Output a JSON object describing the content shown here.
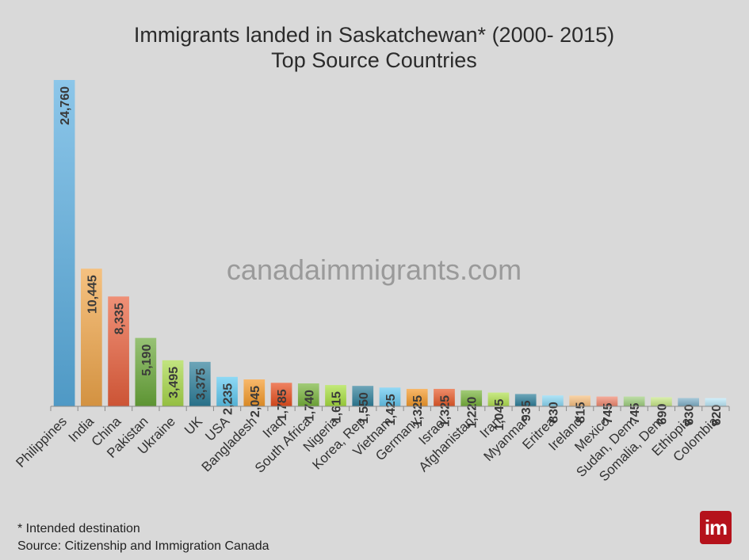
{
  "chart_data": {
    "type": "bar",
    "title": "Immigrants landed in Saskatchewan* (2000- 2015)",
    "subtitle": "Top Source Countries",
    "xlabel": "",
    "ylabel": "",
    "ylim": [
      0,
      25000
    ],
    "grid": false,
    "categories": [
      "Philippines",
      "India",
      "China",
      "Pakistan",
      "Ukraine",
      "UK",
      "USA",
      "Bangladesh",
      "Iraq",
      "South Africa",
      "Nigeria",
      "Korea, Rep",
      "Vietnam",
      "Germany",
      "Israel",
      "Afghanistan",
      "Iran",
      "Myanmar",
      "Eritrea",
      "Ireland",
      "Mexico",
      "Sudan, Dem.",
      "Somalia, Dem",
      "Ethiopia",
      "Colombia"
    ],
    "values": [
      24760,
      10445,
      8335,
      5190,
      3495,
      3375,
      2235,
      2045,
      1785,
      1740,
      1615,
      1550,
      1425,
      1325,
      1325,
      1220,
      1045,
      935,
      830,
      815,
      745,
      745,
      690,
      630,
      620
    ],
    "data_labels": [
      "24,760",
      "10,445",
      "8,335",
      "5,190",
      "3,495",
      "3,375",
      "2,235",
      "2,045",
      "1,785",
      "1,740",
      "1,615",
      "1,550",
      "1,425",
      "1,325",
      "1,325",
      "1,220",
      "1,045",
      "935",
      "830",
      "815",
      "745",
      "745",
      "690",
      "630",
      "620"
    ],
    "colors": [
      "#5aaee0",
      "#f0a64a",
      "#e8603c",
      "#6aa83a",
      "#a8d84a",
      "#2e7f9a",
      "#5ec8f0",
      "#f59a2a",
      "#e84e1e",
      "#78b43c",
      "#a8e040",
      "#2e7f9a",
      "#66c8f0",
      "#f59a2a",
      "#e85a2a",
      "#78b43c",
      "#b0e050",
      "#2e7f9a",
      "#8cd8f4",
      "#f8c080",
      "#f08870",
      "#a0d080",
      "#c8e888",
      "#80b0c8",
      "#bde8f8"
    ]
  },
  "watermark": "canadaimmigrants.com",
  "footnote": {
    "line1": "* Intended destination",
    "line2": "Source: Citizenship and Immigration Canada"
  },
  "logo": {
    "text": "im",
    "color": "#b5121b"
  }
}
